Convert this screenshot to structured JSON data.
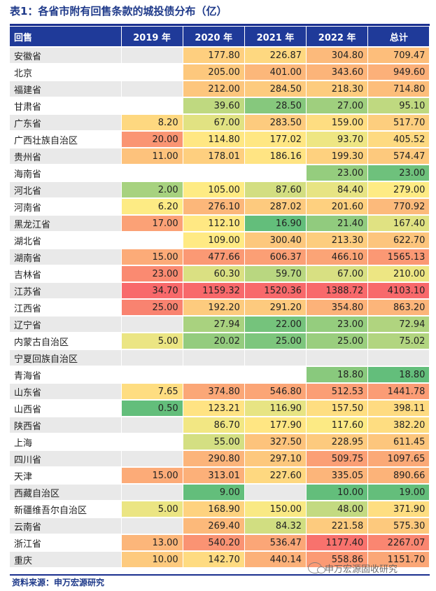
{
  "title": "表1：各省市附有回售条款的城投债分布（亿）",
  "source": "资料来源：申万宏源研究",
  "watermark": "申万宏源固收研究",
  "columns": [
    "回售",
    "2019 年",
    "2020 年",
    "2021 年",
    "2022 年",
    "总计"
  ],
  "chart_data": {
    "type": "table",
    "columns": [
      "回售",
      "2019 年",
      "2020 年",
      "2021 年",
      "2022 年",
      "总计"
    ],
    "rows": [
      [
        "安徽省",
        "",
        "177.80",
        "226.87",
        "304.80",
        "709.47"
      ],
      [
        "北京",
        "",
        "205.00",
        "401.00",
        "343.60",
        "949.60"
      ],
      [
        "福建省",
        "",
        "212.00",
        "284.50",
        "218.30",
        "714.80"
      ],
      [
        "甘肃省",
        "",
        "39.60",
        "28.50",
        "27.00",
        "95.10"
      ],
      [
        "广东省",
        "8.20",
        "67.00",
        "283.50",
        "159.00",
        "517.70"
      ],
      [
        "广西壮族自治区",
        "20.00",
        "114.80",
        "177.02",
        "93.70",
        "405.52"
      ],
      [
        "贵州省",
        "11.00",
        "178.01",
        "186.16",
        "199.30",
        "574.47"
      ],
      [
        "海南省",
        "",
        "",
        "",
        "23.00",
        "23.00"
      ],
      [
        "河北省",
        "2.00",
        "105.00",
        "87.60",
        "84.40",
        "279.00"
      ],
      [
        "河南省",
        "6.20",
        "276.10",
        "287.02",
        "201.60",
        "770.92"
      ],
      [
        "黑龙江省",
        "17.00",
        "112.10",
        "16.90",
        "21.40",
        "167.40"
      ],
      [
        "湖北省",
        "",
        "109.00",
        "300.40",
        "213.30",
        "622.70"
      ],
      [
        "湖南省",
        "15.00",
        "477.66",
        "606.37",
        "466.10",
        "1565.13"
      ],
      [
        "吉林省",
        "23.00",
        "60.30",
        "59.70",
        "67.00",
        "210.00"
      ],
      [
        "江苏省",
        "34.70",
        "1159.32",
        "1520.36",
        "1388.72",
        "4103.10"
      ],
      [
        "江西省",
        "25.00",
        "192.20",
        "291.20",
        "354.80",
        "863.20"
      ],
      [
        "辽宁省",
        "",
        "27.94",
        "22.00",
        "23.00",
        "72.94"
      ],
      [
        "内蒙古自治区",
        "5.00",
        "20.02",
        "25.00",
        "25.00",
        "75.02"
      ],
      [
        "宁夏回族自治区",
        "",
        "",
        "",
        "",
        ""
      ],
      [
        "青海省",
        "",
        "",
        "",
        "18.80",
        "18.80"
      ],
      [
        "山东省",
        "7.65",
        "374.80",
        "546.80",
        "512.53",
        "1441.78"
      ],
      [
        "山西省",
        "0.50",
        "123.21",
        "116.90",
        "157.50",
        "398.11"
      ],
      [
        "陕西省",
        "",
        "86.70",
        "177.90",
        "117.60",
        "382.20"
      ],
      [
        "上海",
        "",
        "55.00",
        "327.50",
        "228.95",
        "611.45"
      ],
      [
        "四川省",
        "",
        "290.80",
        "297.10",
        "509.75",
        "1097.65"
      ],
      [
        "天津",
        "15.00",
        "313.01",
        "227.60",
        "335.05",
        "890.66"
      ],
      [
        "西藏自治区",
        "",
        "9.00",
        "",
        "10.00",
        "19.00"
      ],
      [
        "新疆维吾尔自治区",
        "5.00",
        "168.90",
        "150.00",
        "48.00",
        "371.90"
      ],
      [
        "云南省",
        "",
        "269.40",
        "84.32",
        "221.58",
        "575.30"
      ],
      [
        "浙江省",
        "13.00",
        "540.20",
        "536.47",
        "1177.40",
        "2267.07"
      ],
      [
        "重庆",
        "10.00",
        "142.70",
        "440.14",
        "558.86",
        "1151.70"
      ]
    ]
  },
  "colors": {
    "header_bg": "#1F3A99",
    "title_color": "#1F3A8A",
    "scale_low": "#63BE7B",
    "scale_mid": "#FFEB84",
    "scale_high": "#F8696B",
    "alt_row_bg": "#e9e9e9"
  }
}
